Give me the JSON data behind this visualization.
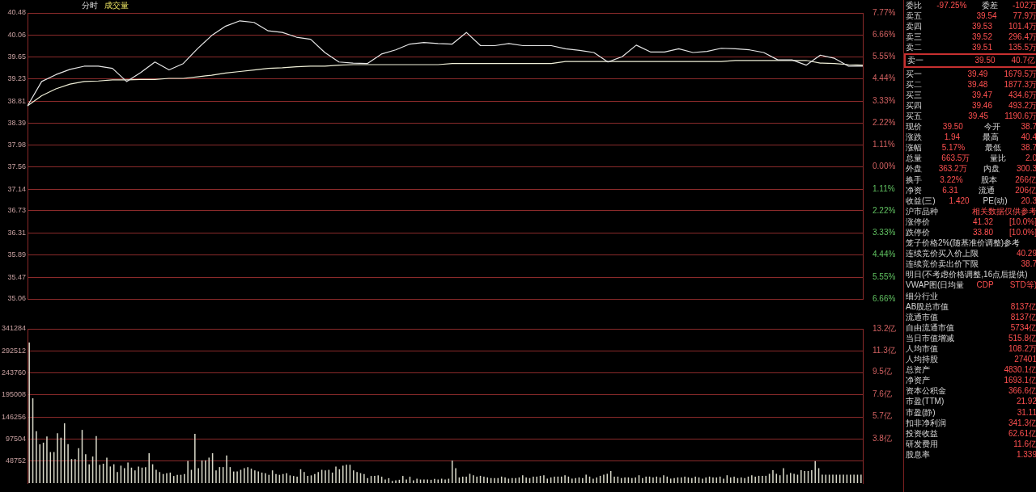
{
  "chart_data": [
    {
      "type": "line",
      "title": "分时",
      "subtitle": "成交量",
      "categories": [
        null,
        null,
        null,
        null,
        null,
        null,
        null,
        null,
        null,
        null,
        null,
        null,
        null,
        null,
        null,
        null,
        null,
        null,
        null,
        null,
        null,
        null,
        null,
        null,
        null,
        null,
        null,
        null,
        null,
        null,
        null,
        null,
        null,
        null,
        null,
        null,
        null,
        null,
        null,
        null,
        null,
        null,
        null,
        null,
        null,
        null,
        null,
        null,
        null,
        null,
        null,
        null,
        null,
        null,
        null,
        null,
        null,
        null,
        null,
        null
      ],
      "series": [
        {
          "color": "#e6e6e6",
          "values": [
            38.72,
            39.18,
            39.31,
            39.41,
            39.47,
            39.47,
            39.43,
            39.18,
            39.35,
            39.55,
            39.4,
            39.52,
            39.8,
            40.05,
            40.23,
            40.33,
            40.3,
            40.14,
            40.11,
            40.02,
            39.98,
            39.73,
            39.55,
            39.53,
            39.52,
            39.7,
            39.78,
            39.89,
            39.92,
            39.9,
            39.89,
            40.11,
            39.86,
            39.86,
            39.9,
            39.86,
            39.86,
            39.86,
            39.8,
            39.77,
            39.73,
            39.55,
            39.65,
            39.87,
            39.74,
            39.74,
            39.8,
            39.73,
            39.75,
            39.81,
            39.8,
            39.78,
            39.73,
            39.59,
            39.59,
            39.49,
            39.68,
            39.62,
            39.47,
            39.47
          ]
        },
        {
          "color": "#f0f0d8",
          "values": [
            38.72,
            38.91,
            39.04,
            39.13,
            39.18,
            39.19,
            39.21,
            39.21,
            39.22,
            39.22,
            39.24,
            39.24,
            39.27,
            39.3,
            39.34,
            39.37,
            39.4,
            39.43,
            39.44,
            39.46,
            39.47,
            39.47,
            39.49,
            39.5,
            39.5,
            39.5,
            39.5,
            39.5,
            39.5,
            39.5,
            39.52,
            39.52,
            39.52,
            39.52,
            39.52,
            39.52,
            39.52,
            39.52,
            39.56,
            39.56,
            39.56,
            39.56,
            39.56,
            39.56,
            39.56,
            39.56,
            39.56,
            39.56,
            39.56,
            39.56,
            39.58,
            39.58,
            39.58,
            39.58,
            39.58,
            39.58,
            39.53,
            39.52,
            39.5,
            39.49
          ]
        }
      ],
      "ylim": [
        35.06,
        40.48
      ],
      "yticks": [
        35.06,
        35.47,
        35.89,
        36.31,
        36.73,
        37.14,
        37.56,
        37.98,
        38.39,
        38.81,
        39.23,
        39.65,
        40.06,
        40.48
      ],
      "y2lim": [
        -6.66,
        7.77
      ],
      "y2ticks": [
        {
          "value": -6.66,
          "label": "6.66%"
        },
        {
          "value": -5.55,
          "label": "5.55%"
        },
        {
          "value": -4.44,
          "label": "4.44%"
        },
        {
          "value": -3.33,
          "label": "3.33%"
        },
        {
          "value": -2.22,
          "label": "2.22%"
        },
        {
          "value": -1.11,
          "label": "1.11%"
        },
        {
          "value": 0,
          "label": "0.00%"
        },
        {
          "value": 1.11,
          "label": "1.11%"
        },
        {
          "value": 2.22,
          "label": "2.22%"
        },
        {
          "value": 3.33,
          "label": "3.33%"
        },
        {
          "value": 4.44,
          "label": "4.44%"
        },
        {
          "value": 5.55,
          "label": "5.55%"
        },
        {
          "value": 6.66,
          "label": "6.66%"
        },
        {
          "value": 7.77,
          "label": "7.77%"
        }
      ],
      "grid": "y",
      "legend": false
    },
    {
      "type": "bar",
      "color": "#d8d8c8",
      "categories": [
        null,
        null,
        null,
        null,
        null,
        null,
        null,
        null,
        null,
        null,
        null,
        null,
        null,
        null,
        null,
        null,
        null,
        null,
        null,
        null,
        null,
        null,
        null,
        null,
        null,
        null,
        null,
        null,
        null,
        null,
        null,
        null,
        null,
        null,
        null,
        null,
        null,
        null,
        null,
        null,
        null,
        null,
        null,
        null,
        null,
        null,
        null,
        null,
        null,
        null,
        null,
        null,
        null,
        null,
        null,
        null,
        null,
        null,
        null,
        null,
        null,
        null,
        null,
        null,
        null,
        null,
        null,
        null,
        null,
        null,
        null,
        null,
        null,
        null,
        null,
        null,
        null,
        null,
        null,
        null,
        null,
        null,
        null,
        null,
        null,
        null,
        null,
        null,
        null,
        null,
        null,
        null,
        null,
        null,
        null,
        null,
        null,
        null,
        null,
        null,
        null,
        null,
        null,
        null,
        null,
        null,
        null,
        null,
        null,
        null,
        null,
        null,
        null,
        null,
        null,
        null,
        null,
        null,
        null,
        null,
        null,
        null,
        null,
        null,
        null,
        null,
        null,
        null,
        null,
        null,
        null,
        null,
        null,
        null,
        null,
        null,
        null,
        null,
        null,
        null,
        null,
        null,
        null,
        null,
        null,
        null,
        null,
        null,
        null,
        null,
        null,
        null,
        null,
        null,
        null,
        null,
        null,
        null,
        null,
        null,
        null,
        null,
        null,
        null,
        null,
        null,
        null,
        null,
        null,
        null,
        null,
        null,
        null,
        null,
        null,
        null,
        null,
        null,
        null,
        null,
        null,
        null,
        null,
        null,
        null,
        null,
        null,
        null,
        null,
        null,
        null,
        null,
        null,
        null,
        null,
        null,
        null,
        null,
        null,
        null,
        null,
        null,
        null,
        null,
        null,
        null,
        null,
        null,
        null,
        null,
        null,
        null,
        null,
        null,
        null,
        null,
        null,
        null,
        null,
        null,
        null,
        null,
        null,
        null,
        null,
        null,
        null,
        null,
        null,
        null,
        null,
        null,
        null,
        null,
        null,
        null,
        null
      ],
      "values": [
        311000,
        187600,
        115000,
        85800,
        89500,
        103000,
        68700,
        68700,
        110300,
        100500,
        132400,
        86400,
        53300,
        53300,
        77200,
        117700,
        63800,
        41700,
        58800,
        104200,
        40500,
        42900,
        56400,
        36800,
        41700,
        24500,
        38600,
        33100,
        45400,
        34300,
        28200,
        36800,
        34300,
        35500,
        66200,
        41700,
        29400,
        24500,
        20200,
        22100,
        23300,
        15900,
        18400,
        18400,
        20200,
        49000,
        29400,
        109100,
        33100,
        50300,
        50300,
        56400,
        66200,
        28200,
        35500,
        35500,
        61300,
        35500,
        25700,
        25700,
        29400,
        33100,
        35500,
        31900,
        28200,
        25700,
        23300,
        22100,
        18400,
        28200,
        20200,
        18400,
        20200,
        22100,
        17200,
        15900,
        14100,
        30700,
        24500,
        15900,
        17200,
        20200,
        24500,
        29400,
        28200,
        29400,
        23300,
        36800,
        30700,
        38600,
        40500,
        40500,
        28200,
        24500,
        22100,
        20200,
        11000,
        15900,
        15900,
        17200,
        14100,
        8000,
        11000,
        4900,
        6100,
        7400,
        15900,
        8000,
        14100,
        6100,
        9800,
        8000,
        8000,
        8000,
        7400,
        9200,
        8000,
        9800,
        8000,
        9800,
        49900,
        33100,
        12500,
        14400,
        14400,
        20600,
        17500,
        14400,
        16200,
        14400,
        12500,
        11200,
        11200,
        11200,
        14400,
        12500,
        10000,
        11200,
        11200,
        12500,
        17500,
        12500,
        11200,
        14400,
        14400,
        16200,
        17500,
        10000,
        12500,
        14400,
        14400,
        14400,
        17500,
        14400,
        10000,
        11200,
        12500,
        11200,
        18700,
        14400,
        10000,
        12500,
        16200,
        18700,
        20600,
        26800,
        14400,
        14400,
        11200,
        12500,
        12500,
        11200,
        12500,
        17500,
        11200,
        14400,
        14400,
        12500,
        14400,
        12500,
        17500,
        14400,
        10000,
        11200,
        12500,
        12500,
        14400,
        12500,
        11200,
        14400,
        12500,
        10000,
        12500,
        14400,
        12500,
        12500,
        14400,
        10000,
        17500,
        12500,
        14400,
        11200,
        12500,
        11200,
        14400,
        17500,
        14400,
        16200,
        16200,
        16200,
        20600,
        28700,
        20600,
        17500,
        33100,
        18700,
        22500,
        20600,
        18700,
        28700,
        26800,
        26800,
        28700,
        48700,
        33100,
        18700,
        18700,
        18700,
        18700,
        18700,
        18700,
        18700,
        18700,
        18700,
        18700,
        18700,
        18700
      ],
      "ylim": [
        0,
        341284
      ],
      "yticks": [
        48752,
        97504,
        146256,
        195008,
        243760,
        292512,
        341284
      ],
      "y2lim": [
        0,
        13.2
      ],
      "y2ticks": [
        {
          "value": 3.8,
          "label": "3.8亿"
        },
        {
          "value": 5.7,
          "label": "5.7亿"
        },
        {
          "value": 7.6,
          "label": "7.6亿"
        },
        {
          "value": 9.5,
          "label": "9.5亿"
        },
        {
          "value": 11.3,
          "label": "11.3亿"
        },
        {
          "value": 13.2,
          "label": "13.2亿"
        }
      ],
      "grid": "y",
      "legend": false
    },
    {
      "type": "other",
      "annotations": [
        "委比 -97.25% 委差 -102万",
        "卖五 39.54 77.9万",
        "卖四 39.53 101.4万",
        "卖三 39.52 296.4万",
        "卖二 39.51 135.5万",
        "卖一 39.50 40.7亿",
        "买一 39.49 1679.5万",
        "买二 39.48 1877.3万",
        "买三 39.47 434.6万",
        "买四 39.46 493.2万",
        "买五 39.45 1190.6万",
        "现价 39.50 今开 38.7",
        "涨跌 1.94 最高 40.4",
        "涨幅 5.17% 最低 38.7",
        "总量 663.5万 量比 2.0",
        "外盘 363.2万 内盘 300.3",
        "换手 3.22% 股本 266亿",
        "净资 6.31 流通 206亿",
        "收益(三) 1.420 PE(动) 20.3",
        "沪市品种 相关数据仅供参考",
        "涨停价 41.32 [10.0%]",
        "跌停价 33.80 [10.0%]",
        "笼子价格2%(随基准价调整)参考",
        "连续竞价买入价上限 40.29",
        "连续竞价卖出价下限 38.7",
        "明日(不考虑价格调整,16点后提供)",
        "VWAP图(日均量 CDP STD等)",
        "细分行业",
        "AB股总市值 8137亿",
        "流通市值 8137亿",
        "自由流通市值 5734亿",
        "当日市值增减 515.8亿",
        "人均市值 108.2万",
        "人均持股 27401",
        "总资产 4830.1亿",
        "净资产 1693.1亿",
        "资本公积金 366.6亿",
        "市盈(TTM) 21.92",
        "市盈(静) 31.11",
        "扣非净利润 341.3亿",
        "投资收益 62.61亿",
        "研发费用 11.6亿",
        "股息率 1.339"
      ]
    }
  ]
}
